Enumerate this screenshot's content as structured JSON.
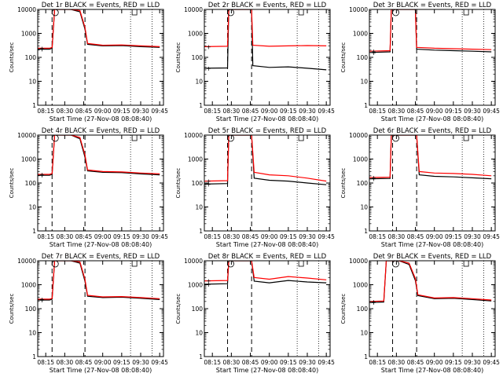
{
  "figure": {
    "ylabel": "Counts/sec",
    "xlabel": "Start Time (27-Nov-08 08:08:40)",
    "xticks": [
      "08:15",
      "08:30",
      "08:45",
      "09:00",
      "09:15",
      "09:30",
      "09:45"
    ],
    "yticks": [
      "1",
      "10",
      "100",
      "1000",
      "10000"
    ],
    "legend_marker": "+",
    "colors": {
      "events": "#000000",
      "lld": "#ff0000",
      "axes": "#000000"
    }
  },
  "chart_data": [
    {
      "type": "line",
      "title": "Det 1r BLACK = Events, RED = LLD",
      "xscale": "time",
      "yscale": "log",
      "xlim": [
        "08:08:40",
        "09:48:00"
      ],
      "ylim": [
        1,
        10000
      ],
      "x": [
        "08:09",
        "08:18",
        "08:20",
        "08:22",
        "08:26",
        "08:30",
        "08:35",
        "08:42",
        "08:46",
        "08:48",
        "09:00",
        "09:15",
        "09:30",
        "09:45"
      ],
      "series": [
        {
          "name": "Events",
          "values": [
            220,
            220,
            240,
            10000,
            10000,
            10000,
            10000,
            8000,
            1500,
            350,
            300,
            310,
            280,
            260
          ]
        },
        {
          "name": "LLD",
          "values": [
            240,
            240,
            260,
            10000,
            10000,
            10000,
            10000,
            9000,
            1800,
            380,
            320,
            330,
            300,
            280
          ]
        }
      ]
    },
    {
      "type": "line",
      "title": "Det 2r BLACK = Events, RED = LLD",
      "xscale": "time",
      "yscale": "log",
      "xlim": [
        "08:08:40",
        "09:48:00"
      ],
      "ylim": [
        1,
        10000
      ],
      "x": [
        "08:09",
        "08:27",
        "08:28",
        "08:46",
        "08:47",
        "09:00",
        "09:15",
        "09:30",
        "09:45"
      ],
      "series": [
        {
          "name": "Events",
          "values": [
            35,
            36,
            10000,
            10000,
            45,
            38,
            40,
            35,
            30
          ]
        },
        {
          "name": "LLD",
          "values": [
            280,
            290,
            10000,
            10000,
            320,
            290,
            300,
            310,
            300
          ]
        }
      ]
    },
    {
      "type": "line",
      "title": "Det 3r BLACK = Events, RED = LLD",
      "xscale": "time",
      "yscale": "log",
      "xlim": [
        "08:08:40",
        "09:48:00"
      ],
      "ylim": [
        1,
        10000
      ],
      "x": [
        "08:09",
        "08:25",
        "08:26",
        "08:45",
        "08:46",
        "09:00",
        "09:15",
        "09:30",
        "09:45"
      ],
      "series": [
        {
          "name": "Events",
          "values": [
            160,
            170,
            10000,
            10000,
            220,
            200,
            190,
            180,
            170
          ]
        },
        {
          "name": "LLD",
          "values": [
            180,
            190,
            10000,
            10000,
            260,
            240,
            230,
            220,
            210
          ]
        }
      ]
    },
    {
      "type": "line",
      "title": "Det 4r BLACK = Events, RED = LLD",
      "xscale": "time",
      "yscale": "log",
      "xlim": [
        "08:08:40",
        "09:48:00"
      ],
      "ylim": [
        1,
        10000
      ],
      "x": [
        "08:09",
        "08:18",
        "08:20",
        "08:22",
        "08:26",
        "08:30",
        "08:35",
        "08:42",
        "08:46",
        "08:48",
        "09:00",
        "09:15",
        "09:30",
        "09:45"
      ],
      "series": [
        {
          "name": "Events",
          "values": [
            210,
            210,
            230,
            10000,
            10000,
            10000,
            10000,
            7000,
            1200,
            320,
            280,
            270,
            240,
            220
          ]
        },
        {
          "name": "LLD",
          "values": [
            230,
            230,
            250,
            10000,
            10000,
            10000,
            10000,
            8000,
            1500,
            350,
            300,
            290,
            260,
            240
          ]
        }
      ]
    },
    {
      "type": "line",
      "title": "Det 5r BLACK = Events, RED = LLD",
      "xscale": "time",
      "yscale": "log",
      "xlim": [
        "08:08:40",
        "09:48:00"
      ],
      "ylim": [
        1,
        10000
      ],
      "x": [
        "08:09",
        "08:27",
        "08:28",
        "08:46",
        "08:48",
        "09:00",
        "09:15",
        "09:30",
        "09:45"
      ],
      "series": [
        {
          "name": "Events",
          "values": [
            90,
            95,
            10000,
            10000,
            160,
            130,
            120,
            100,
            85
          ]
        },
        {
          "name": "LLD",
          "values": [
            120,
            125,
            10000,
            10000,
            280,
            220,
            200,
            160,
            120
          ]
        }
      ]
    },
    {
      "type": "line",
      "title": "Det 6r BLACK = Events, RED = LLD",
      "xscale": "time",
      "yscale": "log",
      "xlim": [
        "08:08:40",
        "09:48:00"
      ],
      "ylim": [
        1,
        10000
      ],
      "x": [
        "08:09",
        "08:25",
        "08:26",
        "08:46",
        "08:48",
        "09:00",
        "09:15",
        "09:30",
        "09:45"
      ],
      "series": [
        {
          "name": "Events",
          "values": [
            150,
            155,
            10000,
            10000,
            220,
            190,
            180,
            165,
            150
          ]
        },
        {
          "name": "LLD",
          "values": [
            170,
            175,
            10000,
            10000,
            300,
            260,
            250,
            230,
            200
          ]
        }
      ]
    },
    {
      "type": "line",
      "title": "Det 7r BLACK = Events, RED = LLD",
      "xscale": "time",
      "yscale": "log",
      "xlim": [
        "08:08:40",
        "09:48:00"
      ],
      "ylim": [
        1,
        10000
      ],
      "x": [
        "08:09",
        "08:18",
        "08:20",
        "08:22",
        "08:26",
        "08:30",
        "08:35",
        "08:42",
        "08:46",
        "08:48",
        "09:00",
        "09:15",
        "09:30",
        "09:45"
      ],
      "series": [
        {
          "name": "Events",
          "values": [
            230,
            230,
            250,
            10000,
            10000,
            10000,
            10000,
            8000,
            1400,
            330,
            290,
            300,
            270,
            240
          ]
        },
        {
          "name": "LLD",
          "values": [
            250,
            250,
            270,
            10000,
            10000,
            10000,
            10000,
            9000,
            1700,
            360,
            310,
            320,
            290,
            260
          ]
        }
      ]
    },
    {
      "type": "line",
      "title": "Det 8r BLACK = Events, RED = LLD",
      "xscale": "time",
      "yscale": "log",
      "xlim": [
        "08:08:40",
        "09:48:00"
      ],
      "ylim": [
        1,
        10000
      ],
      "x": [
        "08:09",
        "08:27",
        "08:28",
        "08:46",
        "08:48",
        "09:00",
        "09:15",
        "09:30",
        "09:45"
      ],
      "series": [
        {
          "name": "Events",
          "values": [
            1050,
            1100,
            10000,
            10000,
            1400,
            1200,
            1500,
            1300,
            1200
          ]
        },
        {
          "name": "LLD",
          "values": [
            1450,
            1500,
            10000,
            10000,
            2000,
            1700,
            2200,
            1900,
            1600
          ]
        }
      ]
    },
    {
      "type": "line",
      "title": "Det 9r BLACK = Events, RED = LLD",
      "xscale": "time",
      "yscale": "log",
      "xlim": [
        "08:08:40",
        "09:48:00"
      ],
      "ylim": [
        1,
        10000
      ],
      "x": [
        "08:09",
        "08:20",
        "08:22",
        "08:26",
        "08:32",
        "08:40",
        "08:45",
        "08:47",
        "09:00",
        "09:15",
        "09:30",
        "09:45"
      ],
      "series": [
        {
          "name": "Events",
          "values": [
            180,
            190,
            10000,
            10000,
            10000,
            7000,
            1500,
            350,
            260,
            270,
            240,
            210
          ]
        },
        {
          "name": "LLD",
          "values": [
            200,
            210,
            10000,
            10000,
            10000,
            8000,
            1800,
            380,
            280,
            290,
            260,
            230
          ]
        }
      ]
    }
  ]
}
